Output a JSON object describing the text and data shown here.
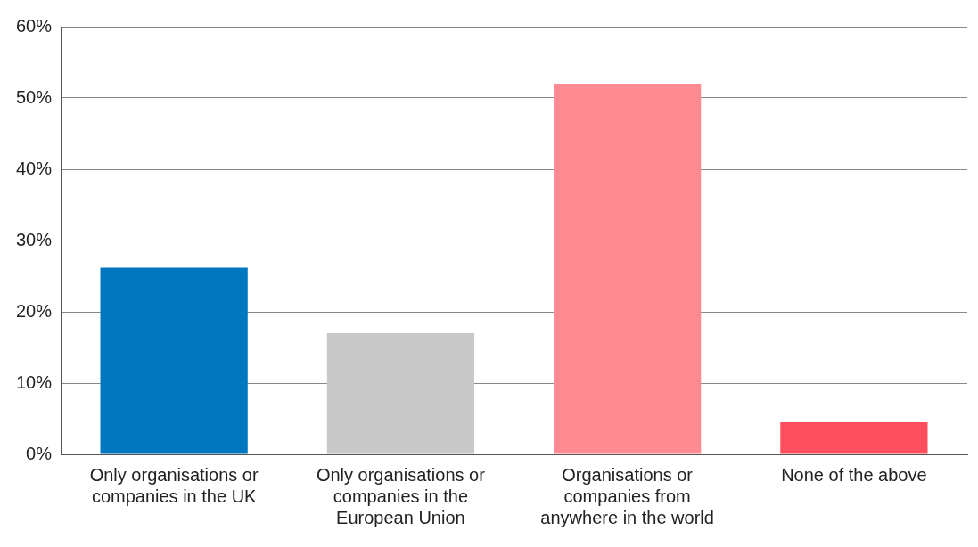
{
  "chart_data": {
    "type": "bar",
    "categories": [
      "Only organisations or companies in the UK",
      "Only organisations or companies in the European Union",
      "Organisations or companies from anywhere in the world",
      "None of the above"
    ],
    "values": [
      26.2,
      17,
      52,
      4.5
    ],
    "colors": [
      "#0077be",
      "#c8c8c8",
      "#ff8a92",
      "#ff4f5e"
    ],
    "ylim": [
      0,
      60
    ],
    "yticks": [
      {
        "value": 0,
        "label": "0%"
      },
      {
        "value": 10,
        "label": "10%"
      },
      {
        "value": 20,
        "label": "20%"
      },
      {
        "value": 30,
        "label": "30%"
      },
      {
        "value": 40,
        "label": "40%"
      },
      {
        "value": 50,
        "label": "50%"
      },
      {
        "value": 60,
        "label": "60%"
      }
    ],
    "grid": "y"
  }
}
